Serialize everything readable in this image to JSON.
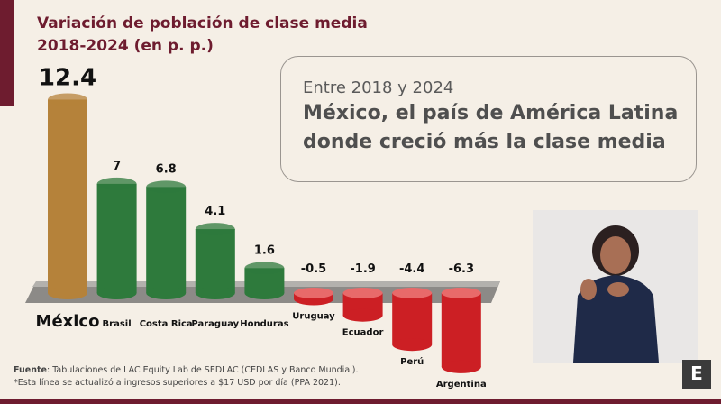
{
  "chart_data": {
    "type": "bar",
    "title": "Variación de población de clase media",
    "subtitle": "2018-2024 (en p. p.)",
    "categories": [
      "México",
      "Brasil",
      "Costa Rica",
      "Paraguay",
      "Honduras",
      "Uruguay",
      "Ecuador",
      "Perú",
      "Argentina"
    ],
    "values": [
      12.4,
      7,
      6.8,
      4.1,
      1.6,
      -0.5,
      -1.9,
      -4.4,
      -6.3
    ],
    "value_labels": [
      "12.4",
      "7",
      "6.8",
      "4.1",
      "1.6",
      "-0.5",
      "-1.9",
      "-4.4",
      "-6.3"
    ],
    "colors": {
      "highlight": "#b5823a",
      "positive": "#2e7a3c",
      "negative": "#cc1f24"
    },
    "grid": false
  },
  "callout": {
    "subtitle": "Entre 2018 y 2024",
    "headline_line1": "México, el país de América Latina",
    "headline_line2": "donde creció más la clase media"
  },
  "footer": {
    "source_label": "Fuente",
    "source_text": ": Tabulaciones de LAC Equity Lab de SEDLAC (CEDLAS y Banco Mundial).",
    "note": "*Esta línea se actualizó a ingresos superiores a $17 USD por día (PPA 2021)."
  },
  "logo": {
    "letter": "E"
  },
  "brand_color": "#6e1c2f"
}
